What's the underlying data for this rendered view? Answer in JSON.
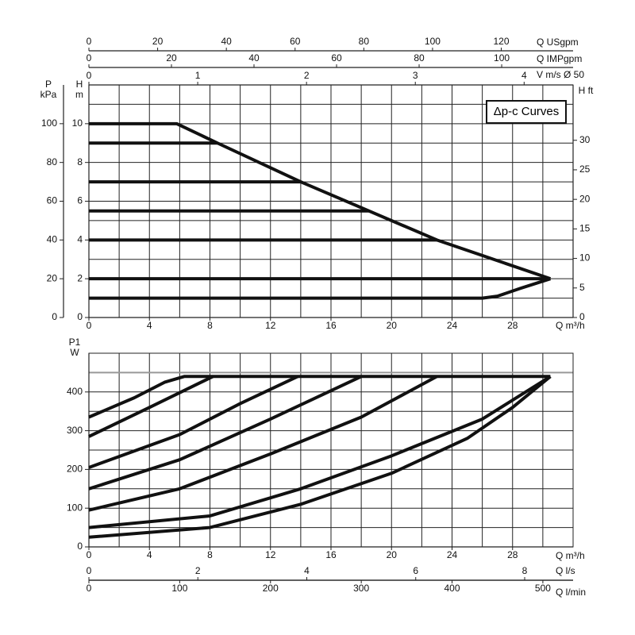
{
  "chart_data": [
    {
      "type": "line",
      "title": "Δp-c Curves",
      "grid": true,
      "axes": [
        {
          "label": "Q m³/h",
          "lim": [
            0,
            32
          ],
          "ticks": [
            0,
            4,
            8,
            12,
            16,
            20,
            24,
            28
          ]
        },
        {
          "label": "Q USgpm",
          "lim": [
            0,
            140.9
          ],
          "ticks": [
            0,
            20,
            40,
            60,
            80,
            100,
            120
          ]
        },
        {
          "label": "Q IMPgpm",
          "lim": [
            0,
            117.3
          ],
          "ticks": [
            0,
            20,
            40,
            60,
            80,
            100
          ]
        },
        {
          "label": "V m/s Ø 50",
          "lim": [
            0,
            4.45
          ],
          "ticks": [
            0,
            1,
            2,
            3,
            4
          ]
        },
        {
          "label": "H m",
          "lim": [
            0,
            12
          ],
          "ticks": [
            0,
            2,
            4,
            6,
            8,
            10
          ]
        },
        {
          "label": "P kPa",
          "lim": [
            0,
            120
          ],
          "ticks": [
            0,
            20,
            40,
            60,
            80,
            100
          ]
        },
        {
          "label": "H ft",
          "lim": [
            0,
            39.37
          ],
          "ticks": [
            0,
            5,
            10,
            15,
            20,
            25,
            30
          ]
        }
      ],
      "xgrid": [
        2,
        4,
        6,
        8,
        10,
        12,
        14,
        16,
        18,
        20,
        22,
        24,
        26,
        28,
        30
      ],
      "ygrid": [
        1,
        2,
        3,
        4,
        5,
        6,
        7,
        8,
        9,
        10,
        11
      ],
      "series": [
        {
          "color": "#111111",
          "x": [
            0,
            5.8,
            8.5,
            14,
            18.5,
            23,
            26,
            30.5
          ],
          "values": [
            10,
            10,
            9,
            7,
            5.5,
            4,
            3.2,
            2
          ]
        },
        {
          "color": "#111111",
          "x": [
            0,
            8.5
          ],
          "values": [
            9,
            9
          ]
        },
        {
          "color": "#111111",
          "x": [
            0,
            14
          ],
          "values": [
            7,
            7
          ]
        },
        {
          "color": "#111111",
          "x": [
            0,
            18.5
          ],
          "values": [
            5.5,
            5.5
          ]
        },
        {
          "color": "#111111",
          "x": [
            0,
            23
          ],
          "values": [
            4,
            4
          ]
        },
        {
          "color": "#111111",
          "x": [
            0,
            30.5
          ],
          "values": [
            2,
            2
          ]
        },
        {
          "color": "#111111",
          "x": [
            0,
            26,
            27,
            28.5,
            30.5
          ],
          "values": [
            1,
            1,
            1.1,
            1.5,
            2
          ]
        }
      ]
    },
    {
      "type": "line",
      "grid": true,
      "axes": [
        {
          "label": "Q m³/h",
          "lim": [
            0,
            32
          ],
          "ticks": [
            0,
            4,
            8,
            12,
            16,
            20,
            24,
            28
          ]
        },
        {
          "label": "Q l/s",
          "lim": [
            0,
            8.889
          ],
          "ticks": [
            0,
            2,
            4,
            6,
            8
          ]
        },
        {
          "label": "Q l/min",
          "lim": [
            0,
            533.3
          ],
          "ticks": [
            0,
            100,
            200,
            300,
            400,
            500
          ]
        },
        {
          "label": "P1 W",
          "lim": [
            0,
            500
          ],
          "ticks": [
            0,
            100,
            200,
            300,
            400
          ]
        }
      ],
      "xgrid": [
        2,
        4,
        6,
        8,
        10,
        12,
        14,
        16,
        18,
        20,
        22,
        24,
        26,
        28,
        30
      ],
      "ygrid": [
        50,
        100,
        150,
        200,
        250,
        300,
        350,
        400
      ],
      "reference_line": {
        "value": 450,
        "color": "#999999"
      },
      "series": [
        {
          "color": "#111111",
          "x": [
            0,
            3,
            5,
            6.3,
            30.5
          ],
          "values": [
            335,
            385,
            425,
            440,
            440
          ]
        },
        {
          "color": "#111111",
          "x": [
            0,
            4,
            8.2
          ],
          "values": [
            285,
            360,
            440
          ]
        },
        {
          "color": "#111111",
          "x": [
            0,
            6,
            10,
            13.8
          ],
          "values": [
            205,
            290,
            370,
            440
          ]
        },
        {
          "color": "#111111",
          "x": [
            0,
            6,
            12,
            18
          ],
          "values": [
            150,
            225,
            330,
            440
          ]
        },
        {
          "color": "#111111",
          "x": [
            0,
            6,
            12,
            18,
            23
          ],
          "values": [
            95,
            150,
            240,
            335,
            440
          ]
        },
        {
          "color": "#111111",
          "x": [
            0,
            8,
            14,
            20,
            26,
            30.5
          ],
          "values": [
            50,
            80,
            150,
            235,
            330,
            440
          ]
        },
        {
          "color": "#111111",
          "x": [
            0,
            8,
            14,
            20,
            25,
            28,
            30.5
          ],
          "values": [
            25,
            50,
            110,
            190,
            280,
            360,
            440
          ]
        }
      ]
    }
  ]
}
